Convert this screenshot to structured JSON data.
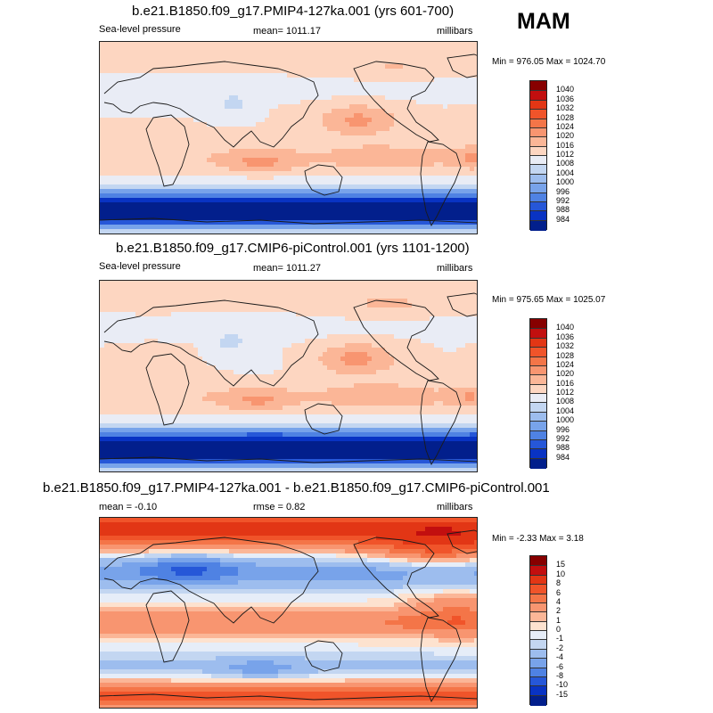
{
  "season": "MAM",
  "chart_data": [
    {
      "type": "heatmap",
      "title": "b.e21.B1850.f09_g17.PMIP4-127ka.001 (yrs 601-700)",
      "left_label": "Sea-level pressure",
      "center_label": "mean= 1011.17",
      "right_label": "millibars",
      "minmax": "Min = 976.05 Max = 1024.70",
      "mean": 1011.17,
      "min": 976.05,
      "max": 1024.7,
      "units": "millibars",
      "colorbar_labels": [
        "1040",
        "1036",
        "1032",
        "1028",
        "1024",
        "1020",
        "1016",
        "1012",
        "1008",
        "1004",
        "1000",
        "996",
        "992",
        "988",
        "984"
      ],
      "colorbar_colors": [
        "#870000",
        "#c20f0f",
        "#e23615",
        "#f0542a",
        "#f47548",
        "#f89570",
        "#fbb697",
        "#fdd6c1",
        "#e9ecf5",
        "#c3d6f1",
        "#9dbdee",
        "#78a3ea",
        "#4f82e3",
        "#2657d8",
        "#0933c3",
        "#021f8c"
      ]
    },
    {
      "type": "heatmap",
      "title": "b.e21.B1850.f09_g17.CMIP6-piControl.001 (yrs 1101-1200)",
      "left_label": "Sea-level pressure",
      "center_label": "mean= 1011.27",
      "right_label": "millibars",
      "minmax": "Min = 975.65 Max = 1025.07",
      "mean": 1011.27,
      "min": 975.65,
      "max": 1025.07,
      "units": "millibars",
      "colorbar_labels": [
        "1040",
        "1036",
        "1032",
        "1028",
        "1024",
        "1020",
        "1016",
        "1012",
        "1008",
        "1004",
        "1000",
        "996",
        "992",
        "988",
        "984"
      ],
      "colorbar_colors": [
        "#870000",
        "#c20f0f",
        "#e23615",
        "#f0542a",
        "#f47548",
        "#f89570",
        "#fbb697",
        "#fdd6c1",
        "#e9ecf5",
        "#c3d6f1",
        "#9dbdee",
        "#78a3ea",
        "#4f82e3",
        "#2657d8",
        "#0933c3",
        "#021f8c"
      ]
    },
    {
      "type": "heatmap",
      "title": "b.e21.B1850.f09_g17.PMIP4-127ka.001 - b.e21.B1850.f09_g17.CMIP6-piControl.001",
      "left_label": "mean =  -0.10",
      "center_label": "rmse =   0.82",
      "right_label": "millibars",
      "minmax": "Min =  -2.33 Max =   3.18",
      "mean": -0.1,
      "rmse": 0.82,
      "min": -2.33,
      "max": 3.18,
      "units": "millibars",
      "colorbar_labels": [
        "15",
        "10",
        "8",
        "6",
        "4",
        "2",
        "1",
        "0",
        "-1",
        "-2",
        "-4",
        "-6",
        "-8",
        "-10",
        "-15"
      ],
      "colorbar_colors": [
        "#870000",
        "#c20f0f",
        "#e23615",
        "#f0542a",
        "#f47548",
        "#f89570",
        "#fbb697",
        "#fde2cf",
        "#e6edf8",
        "#c3d6f1",
        "#9dbdee",
        "#78a3ea",
        "#4f82e3",
        "#2657d8",
        "#0933c3",
        "#021f8c"
      ]
    }
  ]
}
